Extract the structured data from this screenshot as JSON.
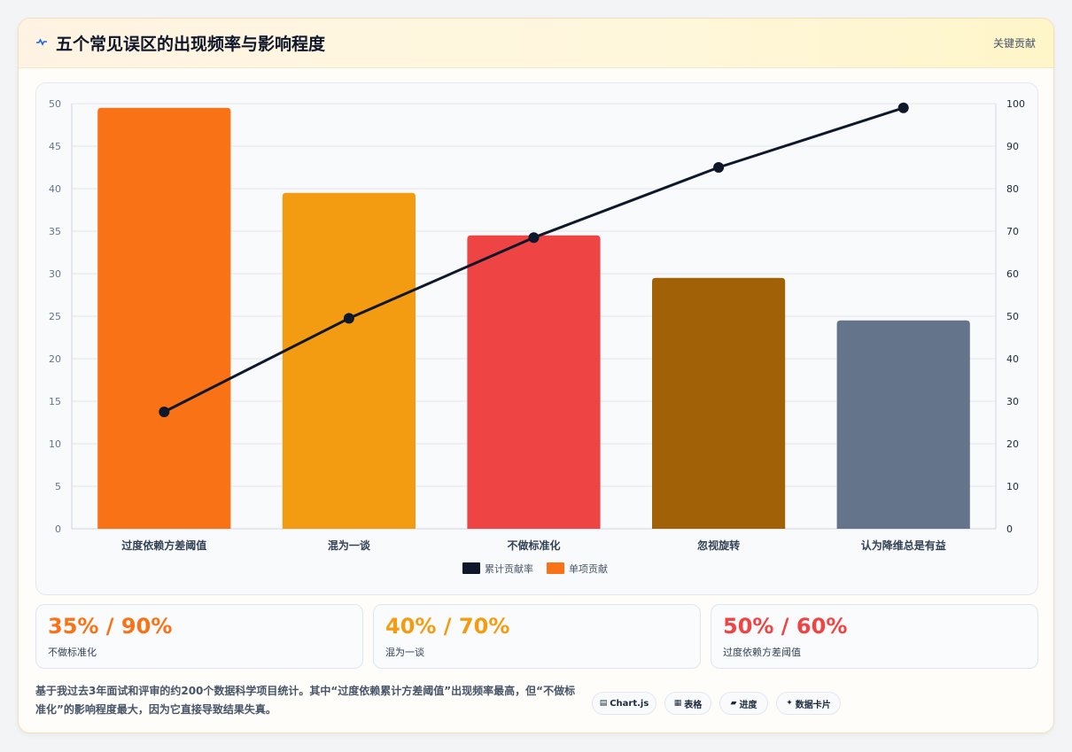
{
  "header": {
    "title": "五个常见误区的出现频率与影响程度",
    "right_label": "关键贡献",
    "icon": "activity-icon"
  },
  "chart_data": {
    "type": "bar",
    "categories": [
      "过度依赖方差阈值",
      "混为一谈",
      "不做标准化",
      "忽视旋转",
      "认为降维总是有益"
    ],
    "series": [
      {
        "name": "单项贡献",
        "type": "bar",
        "axis": "left",
        "values": [
          49.5,
          39.5,
          34.5,
          29.5,
          24.5
        ],
        "colors": [
          "#f97316",
          "#f39c12",
          "#ef4444",
          "#a16207",
          "#64748b"
        ]
      },
      {
        "name": "累计贡献率",
        "type": "line",
        "axis": "right",
        "values": [
          27.5,
          49.5,
          68.5,
          85,
          99
        ],
        "color": "#0f172a"
      }
    ],
    "y_left": {
      "min": 0,
      "max": 50,
      "step": 5
    },
    "y_right": {
      "min": 0,
      "max": 100,
      "step": 10
    },
    "legend": {
      "position": "bottom",
      "entries": [
        {
          "label": "累计贡献率",
          "color": "#0f172a"
        },
        {
          "label": "单项贡献",
          "color": "#f97316"
        }
      ]
    },
    "grid": true
  },
  "stats": [
    {
      "value": "35% / 90%",
      "label": "不做标准化",
      "color": "#f97316"
    },
    {
      "value": "40% / 70%",
      "label": "混为一谈",
      "color": "#f39c12"
    },
    {
      "value": "50% / 60%",
      "label": "过度依赖方差阈值",
      "color": "#ef4444"
    }
  ],
  "footer": {
    "note": "基于我过去3年面试和评审的约200个数据科学项目统计。其中“过度依赖累计方差阈值”出现频率最高，但“不做标准化”的影响程度最大，因为它直接导致结果失真。",
    "chips": [
      {
        "icon": "chart-icon",
        "glyph": "▤",
        "label": "Chart.js"
      },
      {
        "icon": "table-icon",
        "glyph": "▦",
        "label": "表格"
      },
      {
        "icon": "progress-icon",
        "glyph": "▰",
        "label": "进度"
      },
      {
        "icon": "sparkle-icon",
        "glyph": "✦",
        "label": "数据卡片"
      }
    ]
  }
}
